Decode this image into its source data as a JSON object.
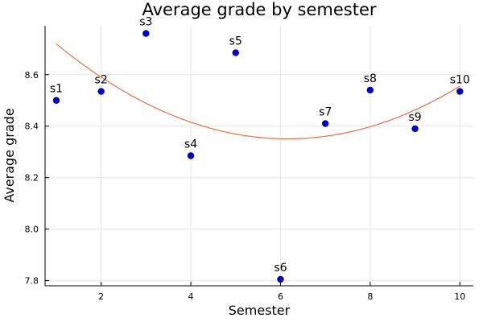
{
  "chart_data": {
    "type": "scatter",
    "title": "Average grade by semester",
    "xlabel": "Semester",
    "ylabel": "Average grade",
    "xlim": [
      0.75,
      10.3
    ],
    "ylim": [
      7.78,
      8.79
    ],
    "xticks": [
      2,
      4,
      6,
      8,
      10
    ],
    "yticks": [
      7.8,
      8.0,
      8.2,
      8.4,
      8.6
    ],
    "xtick_labels": [
      "2",
      "4",
      "6",
      "8",
      "10"
    ],
    "ytick_labels": [
      "7.8",
      "8.0",
      "8.2",
      "8.4",
      "8.6"
    ],
    "grid": true,
    "legend": "none",
    "points": [
      {
        "label": "s1",
        "x": 1,
        "y": 8.5
      },
      {
        "label": "s2",
        "x": 2,
        "y": 8.535
      },
      {
        "label": "s3",
        "x": 3,
        "y": 8.76
      },
      {
        "label": "s4",
        "x": 4,
        "y": 8.285
      },
      {
        "label": "s5",
        "x": 5,
        "y": 8.685
      },
      {
        "label": "s6",
        "x": 6,
        "y": 7.805
      },
      {
        "label": "s7",
        "x": 7,
        "y": 8.41
      },
      {
        "label": "s8",
        "x": 8,
        "y": 8.54
      },
      {
        "label": "s9",
        "x": 9,
        "y": 8.39
      },
      {
        "label": "s10",
        "x": 10,
        "y": 8.535
      }
    ],
    "trend": {
      "type": "quadratic",
      "x_range": [
        1,
        10
      ],
      "coefficients": [
        8.8765,
        -0.1707,
        0.01386
      ],
      "color": "#e26f46"
    },
    "marker_color": "#0000cd",
    "marker_edge_color": "#00008b"
  }
}
